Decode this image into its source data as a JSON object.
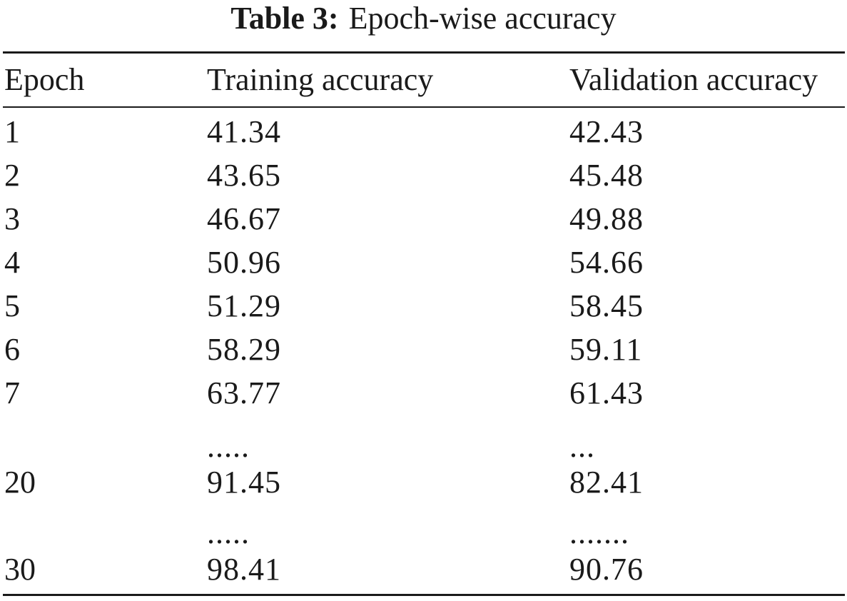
{
  "caption": {
    "label": "Table 3:",
    "text": "Epoch-wise accuracy"
  },
  "table": {
    "headers": [
      "Epoch",
      "Training accuracy",
      "Validation accuracy"
    ],
    "rows": [
      [
        "1",
        "41.34",
        "42.43"
      ],
      [
        "2",
        "43.65",
        "45.48"
      ],
      [
        "3",
        "46.67",
        "49.88"
      ],
      [
        "4",
        "50.96",
        "54.66"
      ],
      [
        "5",
        "51.29",
        "58.45"
      ],
      [
        "6",
        "58.29",
        "59.11"
      ],
      [
        "7",
        "63.77",
        "61.43"
      ],
      [
        "",
        ".....",
        "..."
      ],
      [
        "20",
        "91.45",
        "82.41"
      ],
      [
        "",
        ".....",
        "......."
      ],
      [
        "30",
        "98.41",
        "90.76"
      ]
    ]
  }
}
